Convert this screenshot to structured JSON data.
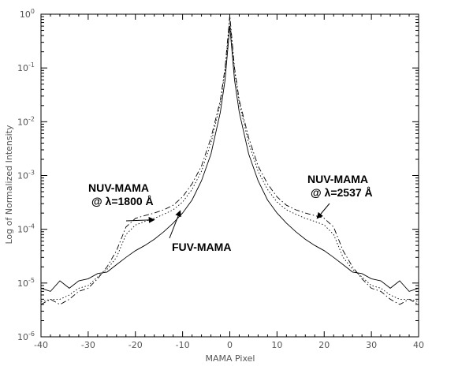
{
  "chart_data": {
    "type": "line",
    "xlabel": "MAMA Pixel",
    "ylabel": "Log  of Normalized Intensity",
    "xlim": [
      -40,
      40
    ],
    "ylim": [
      1e-06,
      1
    ],
    "yscale": "log",
    "grid": false,
    "x_ticks": [
      "-40",
      "-30",
      "-20",
      "-10",
      "0",
      "10",
      "20",
      "30",
      "40"
    ],
    "y_ticks": [
      {
        "base": "10",
        "exp": "-6"
      },
      {
        "base": "10",
        "exp": "-5"
      },
      {
        "base": "10",
        "exp": "-4"
      },
      {
        "base": "10",
        "exp": "-3"
      },
      {
        "base": "10",
        "exp": "-2"
      },
      {
        "base": "10",
        "exp": "-1"
      },
      {
        "base": "10",
        "exp": "0"
      }
    ],
    "series": [
      {
        "name": "FUV-MAMA",
        "style": "solid",
        "x": [
          -40,
          -38,
          -36,
          -34,
          -32,
          -30,
          -28,
          -26,
          -24,
          -22,
          -20,
          -18,
          -16,
          -14,
          -12,
          -10,
          -8,
          -6,
          -4,
          -2,
          -1,
          0,
          1,
          2,
          4,
          6,
          8,
          10,
          12,
          14,
          16,
          18,
          20,
          22,
          24,
          26,
          28,
          30,
          32,
          34,
          36,
          38,
          40
        ],
        "y": [
          8e-06,
          7e-06,
          1.1e-05,
          8e-06,
          1.1e-05,
          1.2e-05,
          1.5e-05,
          1.6e-05,
          2.2e-05,
          3e-05,
          4e-05,
          5e-05,
          6.5e-05,
          9e-05,
          0.00013,
          0.0002,
          0.00035,
          0.0008,
          0.0025,
          0.015,
          0.06,
          0.6,
          0.06,
          0.015,
          0.0025,
          0.0008,
          0.00035,
          0.0002,
          0.00013,
          9e-05,
          6.5e-05,
          5e-05,
          4e-05,
          3e-05,
          2.2e-05,
          1.6e-05,
          1.5e-05,
          1.2e-05,
          1.1e-05,
          8e-06,
          1.1e-05,
          7e-06,
          8e-06
        ]
      },
      {
        "name": "NUV-MAMA @ λ=1800 Å",
        "style": "dotted",
        "x": [
          -40,
          -38,
          -36,
          -34,
          -32,
          -30,
          -28,
          -26,
          -24,
          -22,
          -20,
          -18,
          -16,
          -14,
          -12,
          -10,
          -8,
          -6,
          -4,
          -2,
          -1,
          0,
          1,
          2,
          4,
          6,
          8,
          10,
          12,
          14,
          16,
          18,
          20,
          22,
          24,
          26,
          28,
          30,
          32,
          34,
          36,
          38,
          40
        ],
        "y": [
          4.5e-06,
          5e-06,
          5e-06,
          6e-06,
          8e-06,
          9e-06,
          1.3e-05,
          1.8e-05,
          3e-05,
          8e-05,
          0.00012,
          0.00014,
          0.00016,
          0.00019,
          0.00023,
          0.00032,
          0.00055,
          0.0012,
          0.004,
          0.022,
          0.09,
          0.8,
          0.09,
          0.022,
          0.004,
          0.0012,
          0.00055,
          0.00032,
          0.00023,
          0.00019,
          0.00016,
          0.00014,
          0.00012,
          8e-05,
          3e-05,
          1.8e-05,
          1.3e-05,
          9e-06,
          8e-06,
          6e-06,
          5e-06,
          5e-06,
          4.5e-06
        ]
      },
      {
        "name": "NUV-MAMA @ λ=2537 Å",
        "style": "dash-dot",
        "x": [
          -40,
          -38,
          -36,
          -34,
          -32,
          -30,
          -28,
          -26,
          -24,
          -22,
          -20,
          -18,
          -16,
          -14,
          -12,
          -10,
          -8,
          -6,
          -4,
          -2,
          -1,
          0,
          1,
          2,
          4,
          6,
          8,
          10,
          12,
          14,
          16,
          18,
          20,
          22,
          24,
          26,
          28,
          30,
          32,
          34,
          36,
          38,
          40
        ],
        "y": [
          4e-06,
          5e-06,
          4e-06,
          5e-06,
          7e-06,
          8e-06,
          1.2e-05,
          2e-05,
          4e-05,
          0.00011,
          0.00016,
          0.00018,
          0.0002,
          0.00023,
          0.00028,
          0.0004,
          0.0007,
          0.0015,
          0.005,
          0.025,
          0.1,
          0.95,
          0.1,
          0.025,
          0.005,
          0.0015,
          0.0007,
          0.0004,
          0.00028,
          0.00023,
          0.0002,
          0.00018,
          0.00016,
          0.00011,
          4e-05,
          2e-05,
          1.2e-05,
          8e-06,
          7e-06,
          5e-06,
          4e-06,
          5e-06,
          4e-06
        ]
      }
    ],
    "annotations": [
      {
        "lines": [
          "NUV-MAMA",
          "@ λ=1800 Å"
        ],
        "arrow_to": {
          "x": -16,
          "y": 0.00015
        }
      },
      {
        "lines": [
          "FUV-MAMA"
        ],
        "arrow_to": {
          "x": -10.5,
          "y": 0.00022
        }
      },
      {
        "lines": [
          "NUV-MAMA",
          "@ λ=2537 Å"
        ],
        "arrow_to": {
          "x": 18.5,
          "y": 0.00016
        }
      }
    ]
  }
}
